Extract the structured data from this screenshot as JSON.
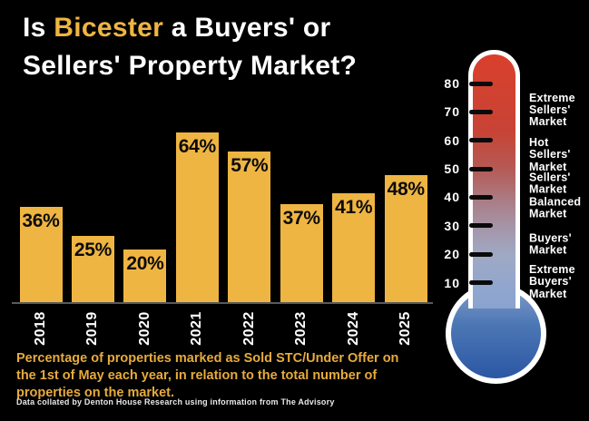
{
  "title": {
    "prefix": "Is ",
    "highlight": "Bicester",
    "suffix": " a Buyers' or",
    "line2": "Sellers' Property Market?"
  },
  "chart_data": {
    "type": "bar",
    "categories": [
      "2018",
      "2019",
      "2020",
      "2021",
      "2022",
      "2023",
      "2024",
      "2025"
    ],
    "values": [
      36,
      25,
      20,
      64,
      57,
      37,
      41,
      48
    ],
    "value_labels": [
      "36%",
      "25%",
      "20%",
      "64%",
      "57%",
      "37%",
      "41%",
      "48%"
    ],
    "title": "Is Bicester a Buyers' or Sellers' Property Market?",
    "xlabel": "",
    "ylabel": "",
    "ylim": [
      0,
      70
    ],
    "grid": false,
    "legend": false,
    "bar_color": "#EFB542",
    "value_label_color": "#000000"
  },
  "thermometer": {
    "scale_ticks": [
      80,
      70,
      60,
      50,
      40,
      30,
      20,
      10
    ],
    "zone_labels": [
      {
        "text": "Extreme\nSellers'\nMarket"
      },
      {
        "text": "Hot\nSellers'\nMarket"
      },
      {
        "text": "Sellers'\nMarket"
      },
      {
        "text": "Balanced\nMarket"
      },
      {
        "text": "Buyers'\nMarket"
      },
      {
        "text": "Extreme\nBuyers'\nMarket"
      }
    ],
    "hot_color": "#D9402C",
    "cold_color": "#2B57A4"
  },
  "caption": "Percentage of properties marked as Sold STC/Under Offer on\nthe 1st of May each year, in relation to the total number of\nproperties on the market.",
  "source": "Data collated by Denton House Research using information from The Advisory",
  "colors": {
    "background": "#000000",
    "gold": "#EFB542",
    "white": "#FFFFFF"
  }
}
